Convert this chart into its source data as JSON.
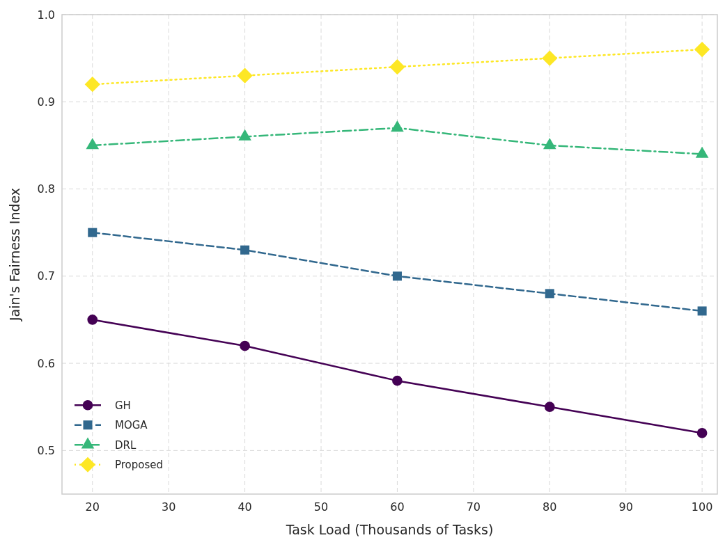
{
  "chart_data": {
    "type": "line",
    "xlabel": "Task Load (Thousands of Tasks)",
    "ylabel": "Jain's Fairness Index",
    "x": [
      20,
      40,
      60,
      80,
      100
    ],
    "series": [
      {
        "name": "GH",
        "color": "#440154",
        "values": [
          0.65,
          0.62,
          0.58,
          0.55,
          0.52
        ],
        "marker": "circle",
        "line_style": "solid"
      },
      {
        "name": "MOGA",
        "color": "#31688e",
        "values": [
          0.75,
          0.73,
          0.7,
          0.68,
          0.66
        ],
        "marker": "square",
        "line_style": "dashed"
      },
      {
        "name": "DRL",
        "color": "#35b779",
        "values": [
          0.85,
          0.86,
          0.87,
          0.85,
          0.84
        ],
        "marker": "triangle",
        "line_style": "dashdot"
      },
      {
        "name": "Proposed",
        "color": "#fde725",
        "values": [
          0.92,
          0.93,
          0.94,
          0.95,
          0.96
        ],
        "marker": "diamond",
        "line_style": "dotted"
      }
    ],
    "xlim": [
      16,
      102
    ],
    "xticks": [
      20,
      30,
      40,
      50,
      60,
      70,
      80,
      90,
      100
    ],
    "ylim": [
      0.45,
      1.0
    ],
    "yticks": [
      {
        "value": 0.5,
        "label": "0.5"
      },
      {
        "value": 0.6,
        "label": "0.6"
      },
      {
        "value": 0.7,
        "label": "0.7"
      },
      {
        "value": 0.8,
        "label": "0.8"
      },
      {
        "value": 0.9,
        "label": "0.9"
      },
      {
        "value": 1.0,
        "label": "1.0"
      }
    ],
    "grid": true,
    "legend": "bottom left"
  }
}
